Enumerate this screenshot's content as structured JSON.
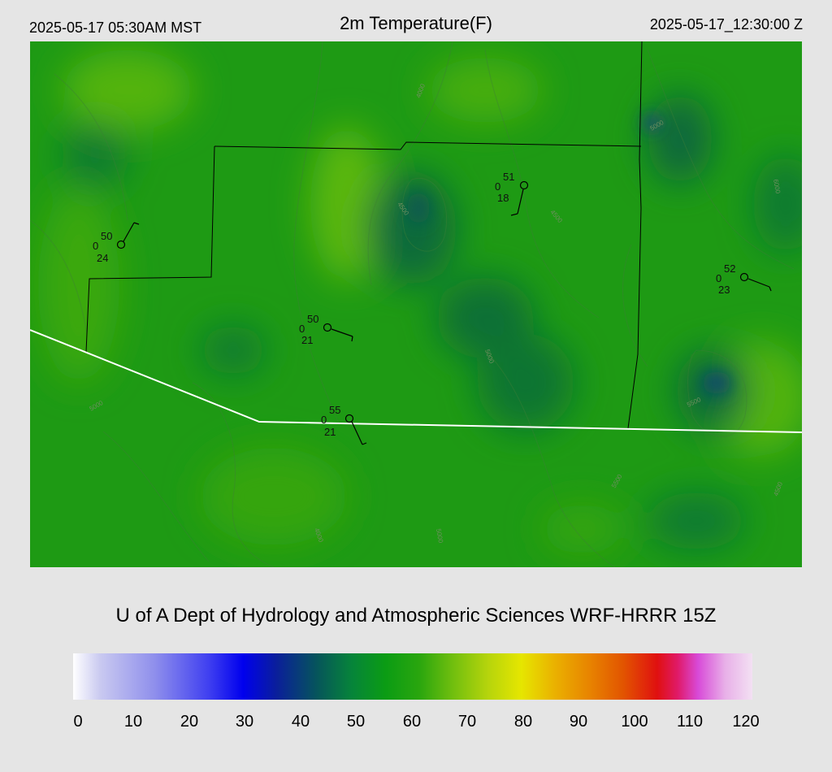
{
  "header": {
    "valid_local": "2025-05-17 05:30AM MST",
    "title": "2m Temperature(F)",
    "valid_utc": "2025-05-17_12:30:00 Z"
  },
  "credit": "U of A Dept of Hydrology and Atmospheric Sciences WRF-HRRR 15Z",
  "colorbar": {
    "ticks": [
      "0",
      "10",
      "20",
      "30",
      "40",
      "50",
      "60",
      "70",
      "80",
      "90",
      "100",
      "110",
      "120"
    ],
    "range": [
      0,
      120
    ]
  },
  "stations": [
    {
      "temp": "50",
      "sky": "0",
      "dewpoint": "24"
    },
    {
      "temp": "51",
      "sky": "0",
      "dewpoint": "18"
    },
    {
      "temp": "52",
      "sky": "0",
      "dewpoint": "23"
    },
    {
      "temp": "50",
      "sky": "0",
      "dewpoint": "21"
    },
    {
      "temp": "55",
      "sky": "0",
      "dewpoint": "21"
    }
  ],
  "contour_labels": [
    "4000",
    "4500",
    "5000",
    "5500",
    "6000",
    "5000",
    "4500",
    "5000",
    "4000",
    "5500",
    "5000",
    "4500"
  ],
  "colors": {
    "background": "#e5e5e5",
    "field_base": "#1e9a14",
    "border_black": "#000000",
    "border_white": "#ffffff"
  }
}
